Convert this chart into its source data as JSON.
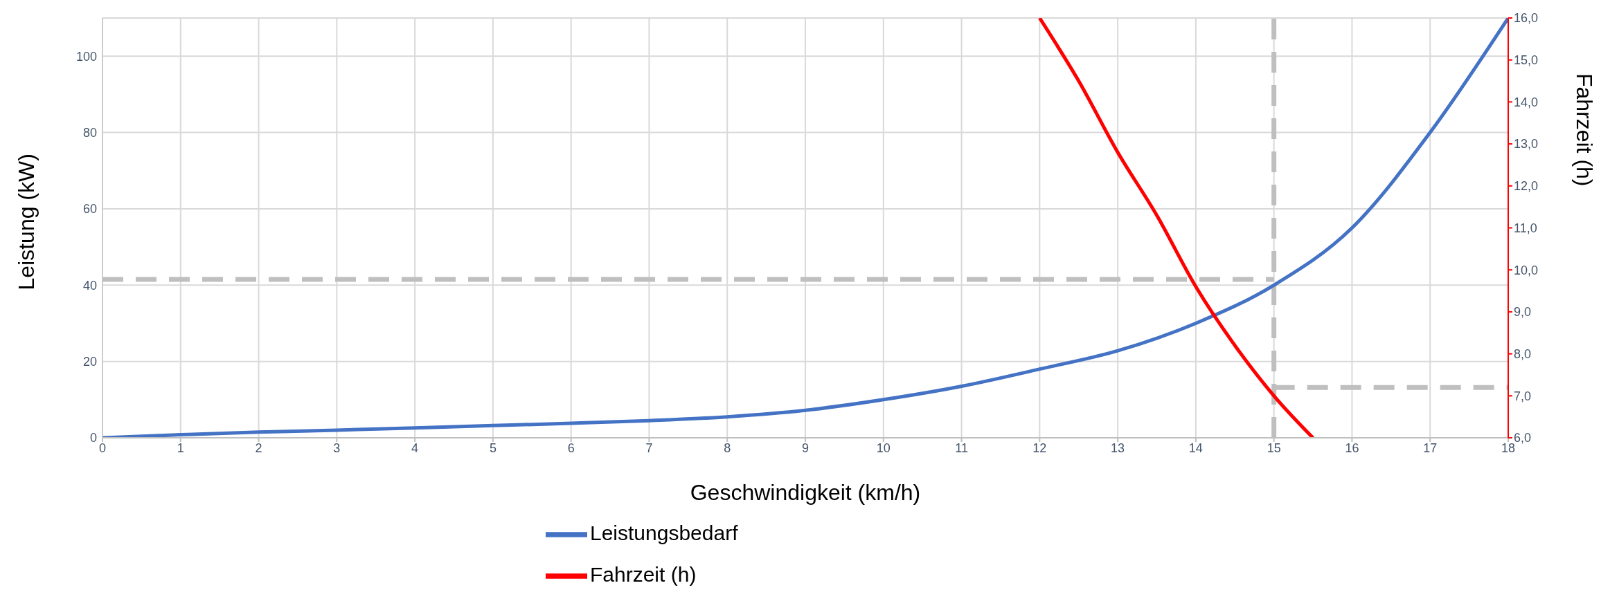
{
  "chart_data": {
    "type": "line",
    "xlabel": "Geschwindigkeit (km/h)",
    "ylabel": "Leistung (kW)",
    "y2label": "Fahrzeit (h)",
    "xlim": [
      0,
      18
    ],
    "xticks": [
      0,
      1,
      2,
      3,
      4,
      5,
      6,
      7,
      8,
      9,
      10,
      11,
      12,
      13,
      14,
      15,
      16,
      17,
      18
    ],
    "ylim": [
      0,
      110
    ],
    "yticks": [
      0,
      20,
      40,
      60,
      80,
      100
    ],
    "y2lim": [
      6,
      16
    ],
    "y2ticks": [
      {
        "value": 6,
        "label": "6,0"
      },
      {
        "value": 7,
        "label": "7,0"
      },
      {
        "value": 8,
        "label": "8,0"
      },
      {
        "value": 9,
        "label": "9,0"
      },
      {
        "value": 10,
        "label": "10,0"
      },
      {
        "value": 11,
        "label": "11,0"
      },
      {
        "value": 12,
        "label": "12,0"
      },
      {
        "value": 13,
        "label": "13,0"
      },
      {
        "value": 14,
        "label": "14,0"
      },
      {
        "value": 15,
        "label": "15,0"
      },
      {
        "value": 16,
        "label": "16,0"
      }
    ],
    "grid": true,
    "legend": "bottom",
    "marker": "none",
    "line_style": "solid",
    "series": [
      {
        "name": "Leistungsbedarf",
        "color": "#4472c4",
        "x": [
          0,
          1,
          2,
          3,
          4,
          5,
          6,
          7,
          8,
          9,
          10,
          11,
          12,
          13,
          14,
          15,
          16,
          17,
          18
        ],
        "values": [
          0,
          0.8,
          1.5,
          2,
          2.6,
          3.2,
          3.8,
          4.5,
          5.5,
          7.2,
          10,
          13.5,
          18,
          22.8,
          30,
          40,
          55,
          80,
          110
        ]
      },
      {
        "name": "Fahrzeit (h)",
        "color": "#ff0000",
        "axis": "y2",
        "x": [
          12,
          12.5,
          13,
          13.5,
          14,
          14.5,
          15,
          15.5
        ],
        "values": [
          16,
          14.5,
          12.8,
          11.3,
          9.6,
          8.2,
          7.0,
          6.0
        ]
      }
    ],
    "ref_lines": [
      {
        "axis": "y",
        "value": 41.5,
        "color": "#bfbfbf",
        "line_style": "dashed"
      },
      {
        "axis": "x",
        "value": 15,
        "color": "#bfbfbf",
        "line_style": "dashed"
      },
      {
        "axis": "y2",
        "value": 7.2,
        "color": "#bfbfbf",
        "line_style": "dashed"
      }
    ]
  }
}
